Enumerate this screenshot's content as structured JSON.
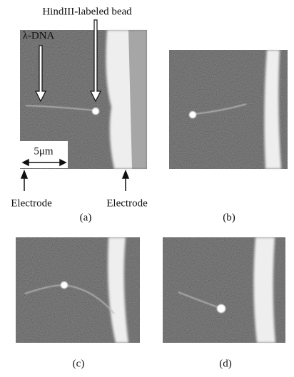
{
  "figure": {
    "annotations": {
      "bead": "HindIII-labeled bead",
      "dna": "λ-DNA",
      "scale": "5μm",
      "electrode_left": "Electrode",
      "electrode_right": "Electrode"
    },
    "panels": [
      {
        "label": "(a)"
      },
      {
        "label": "(b)"
      },
      {
        "label": "(c)"
      },
      {
        "label": "(d)"
      }
    ]
  }
}
